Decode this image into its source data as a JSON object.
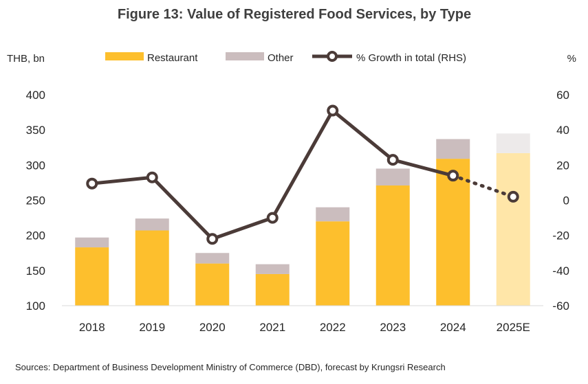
{
  "chart_data": {
    "type": "bar",
    "title": "Figure 13: Value of Registered Food Services, by Type",
    "left_unit": "THB, bn",
    "right_unit": "%",
    "source": "Sources:  Department of Business Development Ministry of Commerce (DBD), forecast by Krungsri Research",
    "categories": [
      "2018",
      "2019",
      "2020",
      "2021",
      "2022",
      "2023",
      "2024",
      "2025E"
    ],
    "series": [
      {
        "name": "Restaurant",
        "kind": "stacked-bar",
        "axis": "left",
        "color": "#FDBF2D",
        "forecast_color": "#FFE6A8",
        "values": [
          183,
          207,
          160,
          145,
          220,
          271,
          309,
          317
        ]
      },
      {
        "name": "Other",
        "kind": "stacked-bar",
        "axis": "left",
        "color": "#CBBDBE",
        "forecast_color": "#EDEAEA",
        "values": [
          14,
          17,
          15,
          14,
          20,
          24,
          28,
          28
        ]
      },
      {
        "name": "% Growth in total (RHS)",
        "kind": "line",
        "axis": "right",
        "color": "#4B3B38",
        "values": [
          9.5,
          13,
          -22,
          -10,
          51,
          23,
          14,
          2
        ],
        "forecast_from_index": 6
      }
    ],
    "forecast_index": 7,
    "y_left": {
      "min": 100,
      "max": 400,
      "ticks": [
        100,
        150,
        200,
        250,
        300,
        350,
        400
      ]
    },
    "y_right": {
      "min": -60,
      "max": 60,
      "ticks": [
        -60,
        -40,
        -20,
        0,
        20,
        40,
        60
      ]
    },
    "grid": false,
    "legend_position": "top"
  }
}
